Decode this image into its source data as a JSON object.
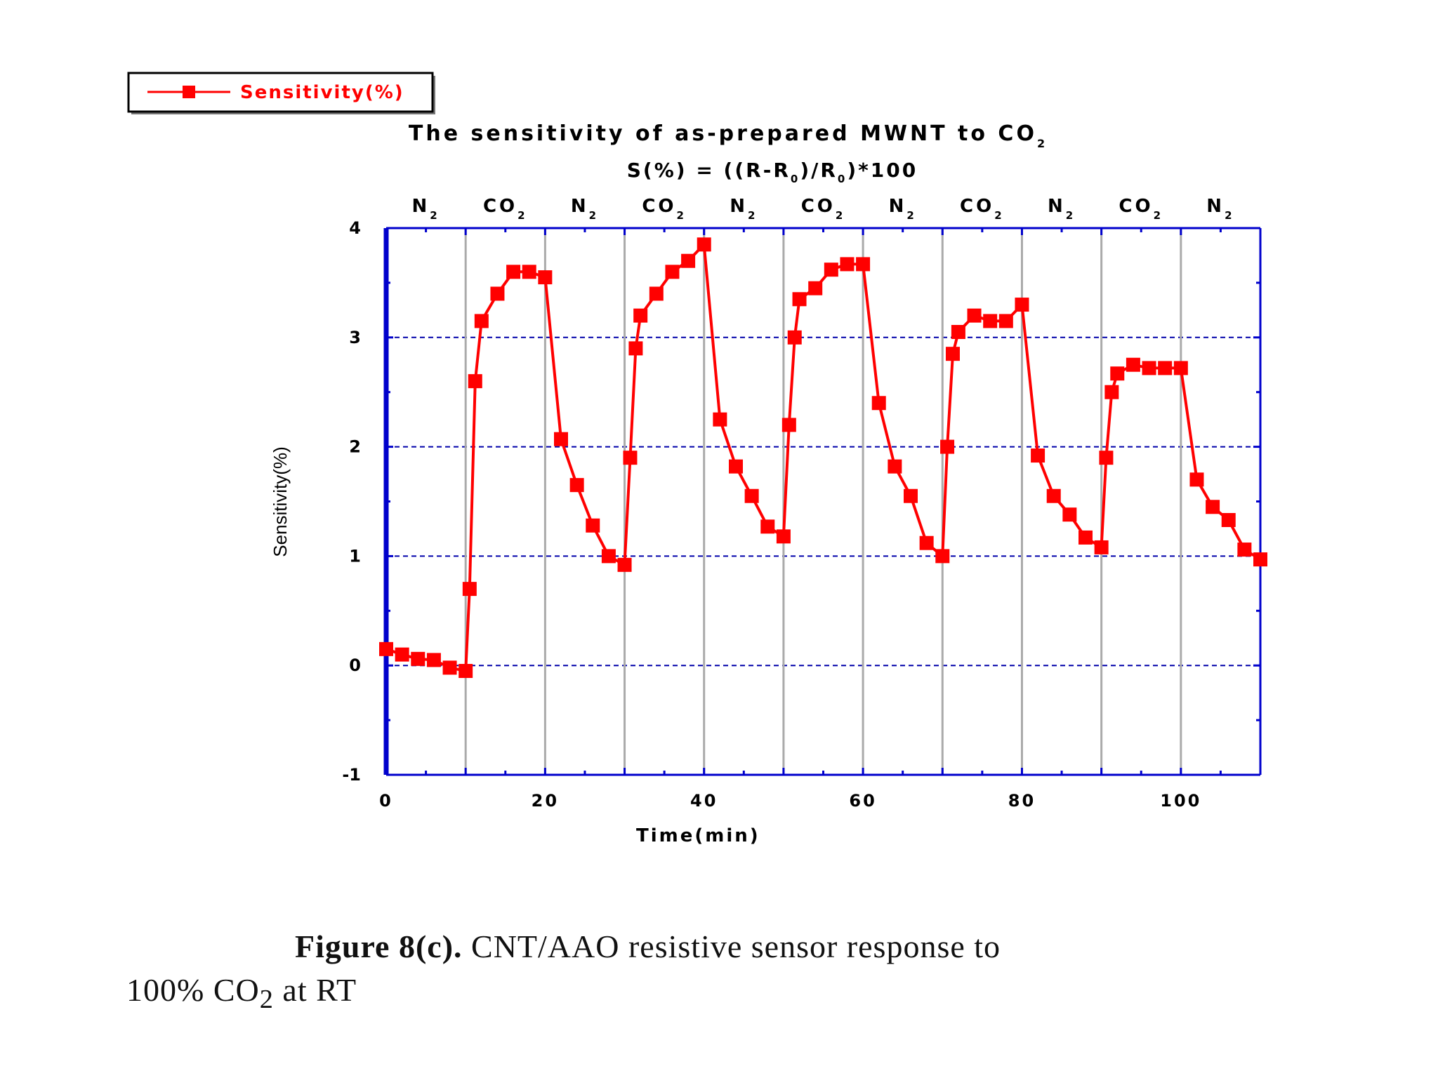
{
  "chart_data": {
    "type": "line",
    "title": "The sensitivity of as-prepared MWNT to CO",
    "title_sub": "2",
    "formula": {
      "parts": [
        "S(%) = ((R-R",
        "0",
        ")/R",
        "0",
        ")*100"
      ]
    },
    "xlabel": "Time(min)",
    "ylabel": "Sensitivity(%)",
    "xlim": [
      0,
      110
    ],
    "ylim": [
      -1,
      4
    ],
    "xticks": [
      0,
      20,
      40,
      60,
      80,
      100
    ],
    "yticks": [
      -1,
      0,
      1,
      2,
      3,
      4
    ],
    "legend": {
      "label": "Sensitivity(%)",
      "position": "top-left"
    },
    "colors": {
      "series": "#ff0000",
      "axis": "#0000cc",
      "grid": "#0000aa",
      "switch_lines": "#aaaaaa"
    },
    "gas_switch_times": [
      10,
      20,
      30,
      40,
      50,
      60,
      70,
      80,
      90,
      100
    ],
    "gas_labels": [
      {
        "gas": "N",
        "sub": "2",
        "center": 5
      },
      {
        "gas": "CO",
        "sub": "2",
        "center": 15
      },
      {
        "gas": "N",
        "sub": "2",
        "center": 25
      },
      {
        "gas": "CO",
        "sub": "2",
        "center": 35
      },
      {
        "gas": "N",
        "sub": "2",
        "center": 45
      },
      {
        "gas": "CO",
        "sub": "2",
        "center": 55
      },
      {
        "gas": "N",
        "sub": "2",
        "center": 65
      },
      {
        "gas": "CO",
        "sub": "2",
        "center": 75
      },
      {
        "gas": "N",
        "sub": "2",
        "center": 85
      },
      {
        "gas": "CO",
        "sub": "2",
        "center": 95
      },
      {
        "gas": "N",
        "sub": "2",
        "center": 105
      }
    ],
    "series": [
      {
        "name": "Sensitivity(%)",
        "x": [
          0,
          2,
          4,
          6,
          8,
          10,
          10.5,
          11.2,
          12,
          14,
          16,
          18,
          20,
          22,
          24,
          26,
          28,
          30,
          30.7,
          31.4,
          32,
          34,
          36,
          38,
          40,
          42,
          44,
          46,
          48,
          50,
          50.7,
          51.4,
          52,
          54,
          56,
          58,
          60,
          62,
          64,
          66,
          68,
          70,
          70.6,
          71.3,
          72,
          74,
          76,
          78,
          80,
          82,
          84,
          86,
          88,
          90,
          90.6,
          91.3,
          92,
          94,
          96,
          98,
          100,
          102,
          104,
          106,
          108,
          110
        ],
        "y": [
          0.15,
          0.1,
          0.06,
          0.05,
          -0.02,
          -0.05,
          0.7,
          2.6,
          3.15,
          3.4,
          3.6,
          3.6,
          3.55,
          2.07,
          1.65,
          1.28,
          1.0,
          0.92,
          1.9,
          2.9,
          3.2,
          3.4,
          3.6,
          3.7,
          3.85,
          2.25,
          1.82,
          1.55,
          1.27,
          1.18,
          2.2,
          3.0,
          3.35,
          3.45,
          3.62,
          3.67,
          3.67,
          2.4,
          1.82,
          1.55,
          1.12,
          1.0,
          2.0,
          2.85,
          3.05,
          3.2,
          3.15,
          3.15,
          3.3,
          1.92,
          1.55,
          1.38,
          1.17,
          1.08,
          1.9,
          2.5,
          2.67,
          2.75,
          2.72,
          2.72,
          2.72,
          1.7,
          1.45,
          1.33,
          1.06,
          0.97
        ]
      }
    ]
  },
  "caption": {
    "label": "Figure 8(c).",
    "text_line1": " CNT/AAO resistive sensor response to",
    "text_line2_a": "100% CO",
    "text_line2_sub": "2",
    "text_line2_b": " at RT"
  }
}
